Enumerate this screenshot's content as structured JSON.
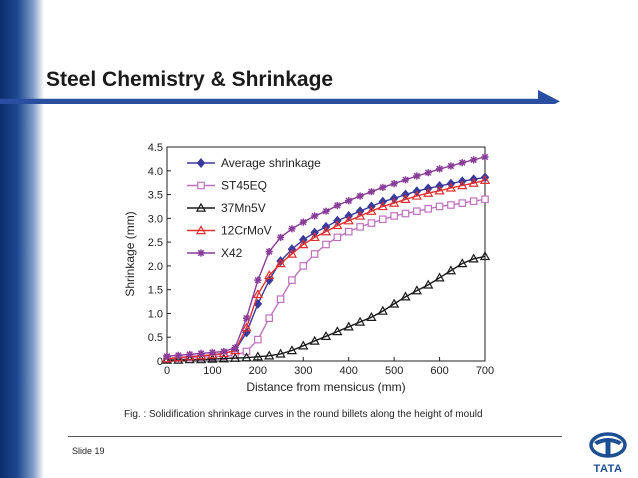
{
  "slide": {
    "title": "Steel Chemistry & Shrinkage",
    "caption": "Fig. : Solidification shrinkage curves in the round billets along the height of mould",
    "slide_number": "Slide 19",
    "logo_text": "TATA"
  },
  "colors": {
    "band_dark": "#0d2d6e",
    "rule_blue": "#2a4fa0",
    "logo_blue": "#1d4f94"
  },
  "chart_data": {
    "type": "line",
    "title": "",
    "xlabel": "Distance from mensicus (mm)",
    "ylabel": "Shrinkage (mm)",
    "xlim": [
      0,
      700
    ],
    "ylim": [
      0,
      4.5
    ],
    "xticks": [
      "0",
      "100",
      "200",
      "300",
      "400",
      "500",
      "600",
      "700"
    ],
    "yticks": [
      "0",
      "0.5",
      "1.0",
      "1.5",
      "2.0",
      "2.5",
      "3.0",
      "3.5",
      "4.0",
      "4.5"
    ],
    "grid": false,
    "legend_position": "top-left",
    "series": [
      {
        "name": "Average shrinkage",
        "color": "#3a3a9c",
        "marker": "diamond",
        "x": [
          0,
          25,
          50,
          75,
          100,
          125,
          150,
          175,
          200,
          225,
          250,
          275,
          300,
          325,
          350,
          375,
          400,
          425,
          450,
          475,
          500,
          525,
          550,
          575,
          600,
          625,
          650,
          675,
          700
        ],
        "y": [
          0.05,
          0.07,
          0.09,
          0.11,
          0.13,
          0.16,
          0.22,
          0.6,
          1.2,
          1.7,
          2.1,
          2.35,
          2.55,
          2.7,
          2.82,
          2.95,
          3.05,
          3.15,
          3.25,
          3.35,
          3.42,
          3.5,
          3.57,
          3.63,
          3.68,
          3.73,
          3.78,
          3.82,
          3.86
        ]
      },
      {
        "name": "ST45EQ",
        "color": "#c070c0",
        "marker": "square",
        "x": [
          0,
          25,
          50,
          75,
          100,
          125,
          150,
          175,
          200,
          225,
          250,
          275,
          300,
          325,
          350,
          375,
          400,
          425,
          450,
          475,
          500,
          525,
          550,
          575,
          600,
          625,
          650,
          675,
          700
        ],
        "y": [
          0.05,
          0.06,
          0.07,
          0.08,
          0.09,
          0.1,
          0.12,
          0.2,
          0.45,
          0.9,
          1.3,
          1.7,
          2.0,
          2.25,
          2.45,
          2.6,
          2.72,
          2.82,
          2.9,
          2.98,
          3.05,
          3.1,
          3.15,
          3.2,
          3.25,
          3.28,
          3.32,
          3.36,
          3.4
        ]
      },
      {
        "name": "37Mn5V",
        "color": "#1a1a1a",
        "marker": "triangle",
        "x": [
          0,
          25,
          50,
          75,
          100,
          125,
          150,
          175,
          200,
          225,
          250,
          275,
          300,
          325,
          350,
          375,
          400,
          425,
          450,
          475,
          500,
          525,
          550,
          575,
          600,
          625,
          650,
          675,
          700
        ],
        "y": [
          0.02,
          0.02,
          0.03,
          0.03,
          0.04,
          0.05,
          0.06,
          0.07,
          0.09,
          0.11,
          0.15,
          0.22,
          0.32,
          0.42,
          0.52,
          0.62,
          0.72,
          0.82,
          0.92,
          1.05,
          1.2,
          1.35,
          1.48,
          1.6,
          1.75,
          1.9,
          2.05,
          2.15,
          2.2
        ]
      },
      {
        "name": "12CrMoV",
        "color": "#e03030",
        "marker": "triangle",
        "x": [
          0,
          25,
          50,
          75,
          100,
          125,
          150,
          175,
          200,
          225,
          250,
          275,
          300,
          325,
          350,
          375,
          400,
          425,
          450,
          475,
          500,
          525,
          550,
          575,
          600,
          625,
          650,
          675,
          700
        ],
        "y": [
          0.05,
          0.07,
          0.09,
          0.11,
          0.13,
          0.16,
          0.22,
          0.7,
          1.4,
          1.8,
          2.05,
          2.25,
          2.45,
          2.6,
          2.72,
          2.85,
          2.95,
          3.05,
          3.15,
          3.25,
          3.32,
          3.4,
          3.47,
          3.53,
          3.58,
          3.64,
          3.69,
          3.74,
          3.8
        ]
      },
      {
        "name": "X42",
        "color": "#8a3c9a",
        "marker": "star",
        "x": [
          0,
          25,
          50,
          75,
          100,
          125,
          150,
          175,
          200,
          225,
          250,
          275,
          300,
          325,
          350,
          375,
          400,
          425,
          450,
          475,
          500,
          525,
          550,
          575,
          600,
          625,
          650,
          675,
          700
        ],
        "y": [
          0.1,
          0.12,
          0.14,
          0.16,
          0.18,
          0.2,
          0.28,
          0.9,
          1.7,
          2.3,
          2.6,
          2.78,
          2.92,
          3.05,
          3.15,
          3.27,
          3.37,
          3.47,
          3.56,
          3.65,
          3.73,
          3.81,
          3.89,
          3.96,
          4.04,
          4.1,
          4.17,
          4.23,
          4.29
        ]
      }
    ]
  }
}
